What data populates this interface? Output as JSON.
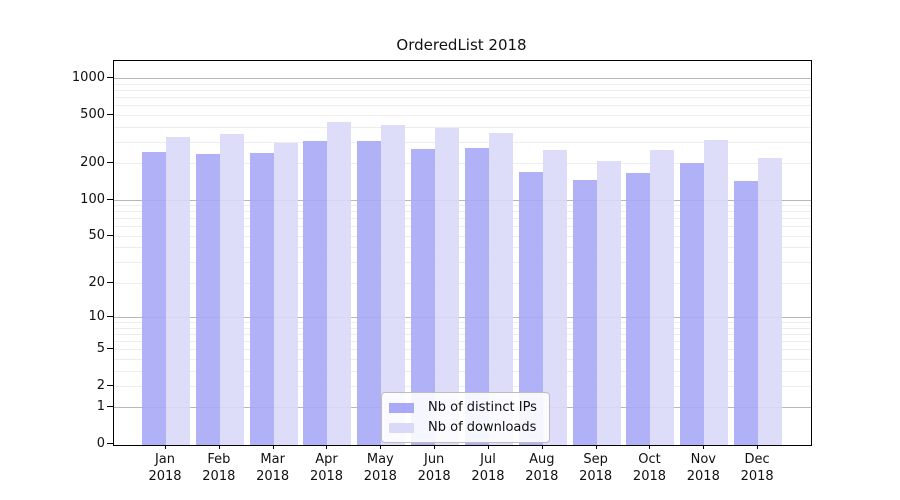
{
  "title": "OrderedList 2018",
  "chart_data": {
    "type": "bar",
    "title": "OrderedList 2018",
    "y_scale": "log1p",
    "ylim": [
      0,
      1411
    ],
    "y_ticks": [
      0,
      1,
      2,
      5,
      10,
      20,
      50,
      100,
      200,
      500,
      1000
    ],
    "grid": true,
    "legend_position": "inside lower center",
    "categories": [
      "Jan 2018",
      "Feb 2018",
      "Mar 2018",
      "Apr 2018",
      "May 2018",
      "Jun 2018",
      "Jul 2018",
      "Aug 2018",
      "Sep 2018",
      "Oct 2018",
      "Nov 2018",
      "Dec 2018"
    ],
    "series": [
      {
        "name": "Nb of distinct IPs",
        "color": "#a9a9f7",
        "values": [
          254,
          242,
          250,
          308,
          309,
          265,
          270,
          173,
          147,
          170,
          203,
          145
        ]
      },
      {
        "name": "Nb of downloads",
        "color": "#d9d9f8",
        "values": [
          337,
          355,
          298,
          449,
          421,
          399,
          360,
          262,
          214,
          261,
          318,
          226
        ]
      }
    ],
    "colors": {
      "major_grid": "#b8b8b8",
      "minor_grid": "#ededed",
      "axis": "#000000",
      "background": "#ffffff"
    }
  }
}
